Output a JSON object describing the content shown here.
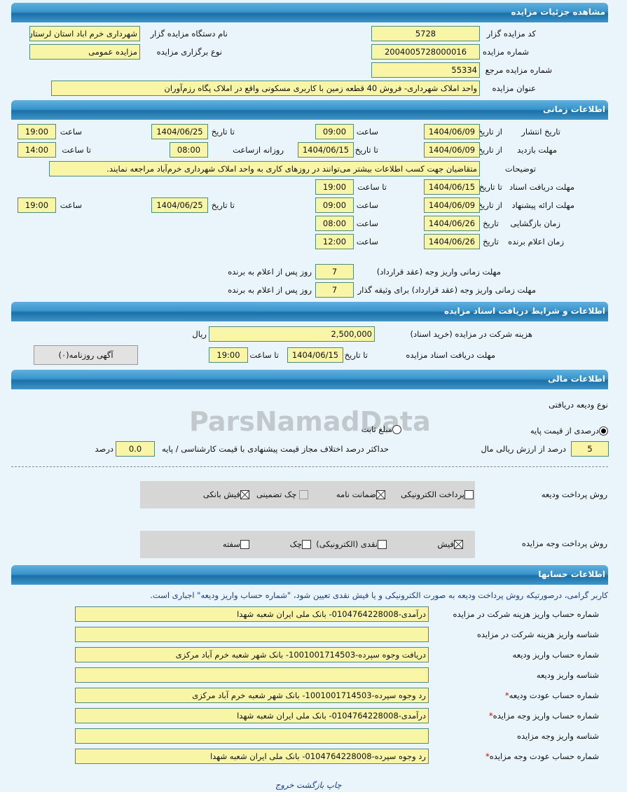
{
  "sections": {
    "details": "مشاهده جزئیات مزایده",
    "time": "اطلاعات زمانی",
    "docs": "اطلاعات و شرایط دریافت اسناد مزایده",
    "finance": "اطلاعات مالی",
    "accounts": "اطلاعات حسابها"
  },
  "details": {
    "organizer_code_label": "کد مزایده گزار",
    "organizer_code": "5728",
    "organizer_name_label": "نام دستگاه مزایده گزار",
    "organizer_name": "شهرداری خرم اباد استان لرستان",
    "auction_number_label": "شماره مزایده",
    "auction_number": "2004005728000016",
    "type_label": "نوع برگزاری مزایده",
    "type": "مزایده عمومی",
    "ref_number_label": "شماره مزایده مرجع",
    "ref_number": "55334",
    "title_label": "عنوان مزایده",
    "title": "واحد املاک شهرداری- فروش 40 قطعه زمین با کاربری مسکونی واقع در املاک پگاه رزم‌آوران"
  },
  "time": {
    "from_date": "از تاریخ",
    "to_date": "تا تاریخ",
    "date": "تاریخ",
    "hour": "ساعت",
    "to_hour": "تا ساعت",
    "daily_from": "روزانه ازساعت",
    "publish": {
      "label": "تاریخ انتشار",
      "from": "1404/06/09",
      "from_time": "09:00",
      "to": "1404/06/25",
      "to_time": "19:00"
    },
    "visit": {
      "label": "مهلت بازدید",
      "from": "1404/06/09",
      "to": "1404/06/15",
      "daily_from": "08:00",
      "to_time": "14:00"
    },
    "desc_label": "توضیحات",
    "desc": "متقاضیان جهت کسب اطلاعات بیشتر می‌توانند در روزهای کاری به واحد املاک شهرداری خرم‌آباد مراجعه نمایند.",
    "docs": {
      "label": "مهلت دریافت اسناد",
      "to": "1404/06/15",
      "to_time": "19:00"
    },
    "offer": {
      "label": "مهلت ارائه پیشنهاد",
      "from": "1404/06/09",
      "from_time": "09:00",
      "to": "1404/06/25",
      "to_time": "19:00"
    },
    "opening": {
      "label": "زمان بازگشایی",
      "date": "1404/06/26",
      "time": "08:00"
    },
    "winner": {
      "label": "زمان اعلام برنده",
      "date": "1404/06/26",
      "time": "12:00"
    },
    "pay1": {
      "label": "مهلت زمانی واریز وجه (عقد قرارداد)",
      "value": "7",
      "suffix": "روز پس از اعلام به برنده"
    },
    "pay2": {
      "label": "مهلت زمانی واریز وجه (عقد قرارداد) برای وثیقه گذار",
      "value": "7",
      "suffix": "روز پس از اعلام به برنده"
    }
  },
  "docs": {
    "cost_label": "هزینه شرکت در مزایده (خرید اسناد)",
    "cost": "2,500,000",
    "currency": "ریال",
    "deadline_label": "مهلت دریافت اسناد مزایده",
    "to_date": "تا تاریخ",
    "date": "1404/06/15",
    "to_hour": "تا ساعت",
    "time": "19:00",
    "newspaper_button": "آگهی روزنامه(۰)"
  },
  "finance": {
    "deposit_type_label": "نوع ودیعه دریافتی",
    "percent_option": "درصدی از قیمت پایه",
    "fixed_option": "مبلغ ثابت",
    "selected": "percent",
    "percent_value": "5",
    "percent_suffix": "درصد از ارزش ریالی مال",
    "max_diff_label": "حداکثر درصد اختلاف مجاز قیمت پیشنهادی با قیمت کارشناسی / پایه",
    "max_diff": "0.0",
    "max_diff_suffix": "درصد",
    "deposit_method_label": "روش پرداخت ودیعه",
    "deposit_methods": [
      {
        "label": "پرداخت الکترونیکی",
        "checked": false
      },
      {
        "label": "ضمانت نامه",
        "checked": true
      },
      {
        "label": "چک تضمینی",
        "checked": false,
        "disabled": true
      },
      {
        "label": "فیش بانکی",
        "checked": true
      }
    ],
    "payment_method_label": "روش پرداخت وجه مزایده",
    "payment_methods": [
      {
        "label": "فیش",
        "checked": true
      },
      {
        "label": "نقدی (الکترونیکی)",
        "checked": false
      },
      {
        "label": "چک",
        "checked": false
      },
      {
        "label": "سفته",
        "checked": false
      }
    ]
  },
  "accounts": {
    "notice": "کاربر گرامی، درصورتیکه روش پرداخت ودیعه به صورت الکترونیکی و یا فیش نقدی تعیین شود، \"شماره حساب واریز ودیعه\" اجباری است.",
    "rows": [
      {
        "label": "شماره حساب واریز هزینه شرکت در مزایده",
        "value": "درآمدی-0104764228008- بانک ملی ایران شعبه شهدا",
        "required": false
      },
      {
        "label": "شناسه واریز هزینه شرکت در مزایده",
        "value": "",
        "required": false
      },
      {
        "label": "شماره حساب واریز ودیعه",
        "value": "دریافت وجوه سپرده-1001001714503- بانک شهر شعبه خرم آباد مرکزی",
        "required": false
      },
      {
        "label": "شناسه واریز ودیعه",
        "value": "",
        "required": false
      },
      {
        "label": "شماره حساب عودت ودیعه",
        "value": "رد وجوه سپرده-1001001714503- بانک شهر شعبه خرم آباد مرکزی",
        "required": true
      },
      {
        "label": "شماره حساب واریز وجه مزایده",
        "value": "درآمدی-0104764228008- بانک ملی ایران شعبه شهدا",
        "required": true
      },
      {
        "label": "شناسه واریز وجه مزایده",
        "value": "",
        "required": false
      },
      {
        "label": "شماره حساب عودت وجه مزایده",
        "value": "رد وجوه سپرده-0104764228008- بانک ملی ایران شعبه شهدا",
        "required": true
      }
    ]
  },
  "footer": {
    "print": "چاپ",
    "back": "بازگشت",
    "exit": "خروج"
  },
  "watermark": "ParsNamadData"
}
